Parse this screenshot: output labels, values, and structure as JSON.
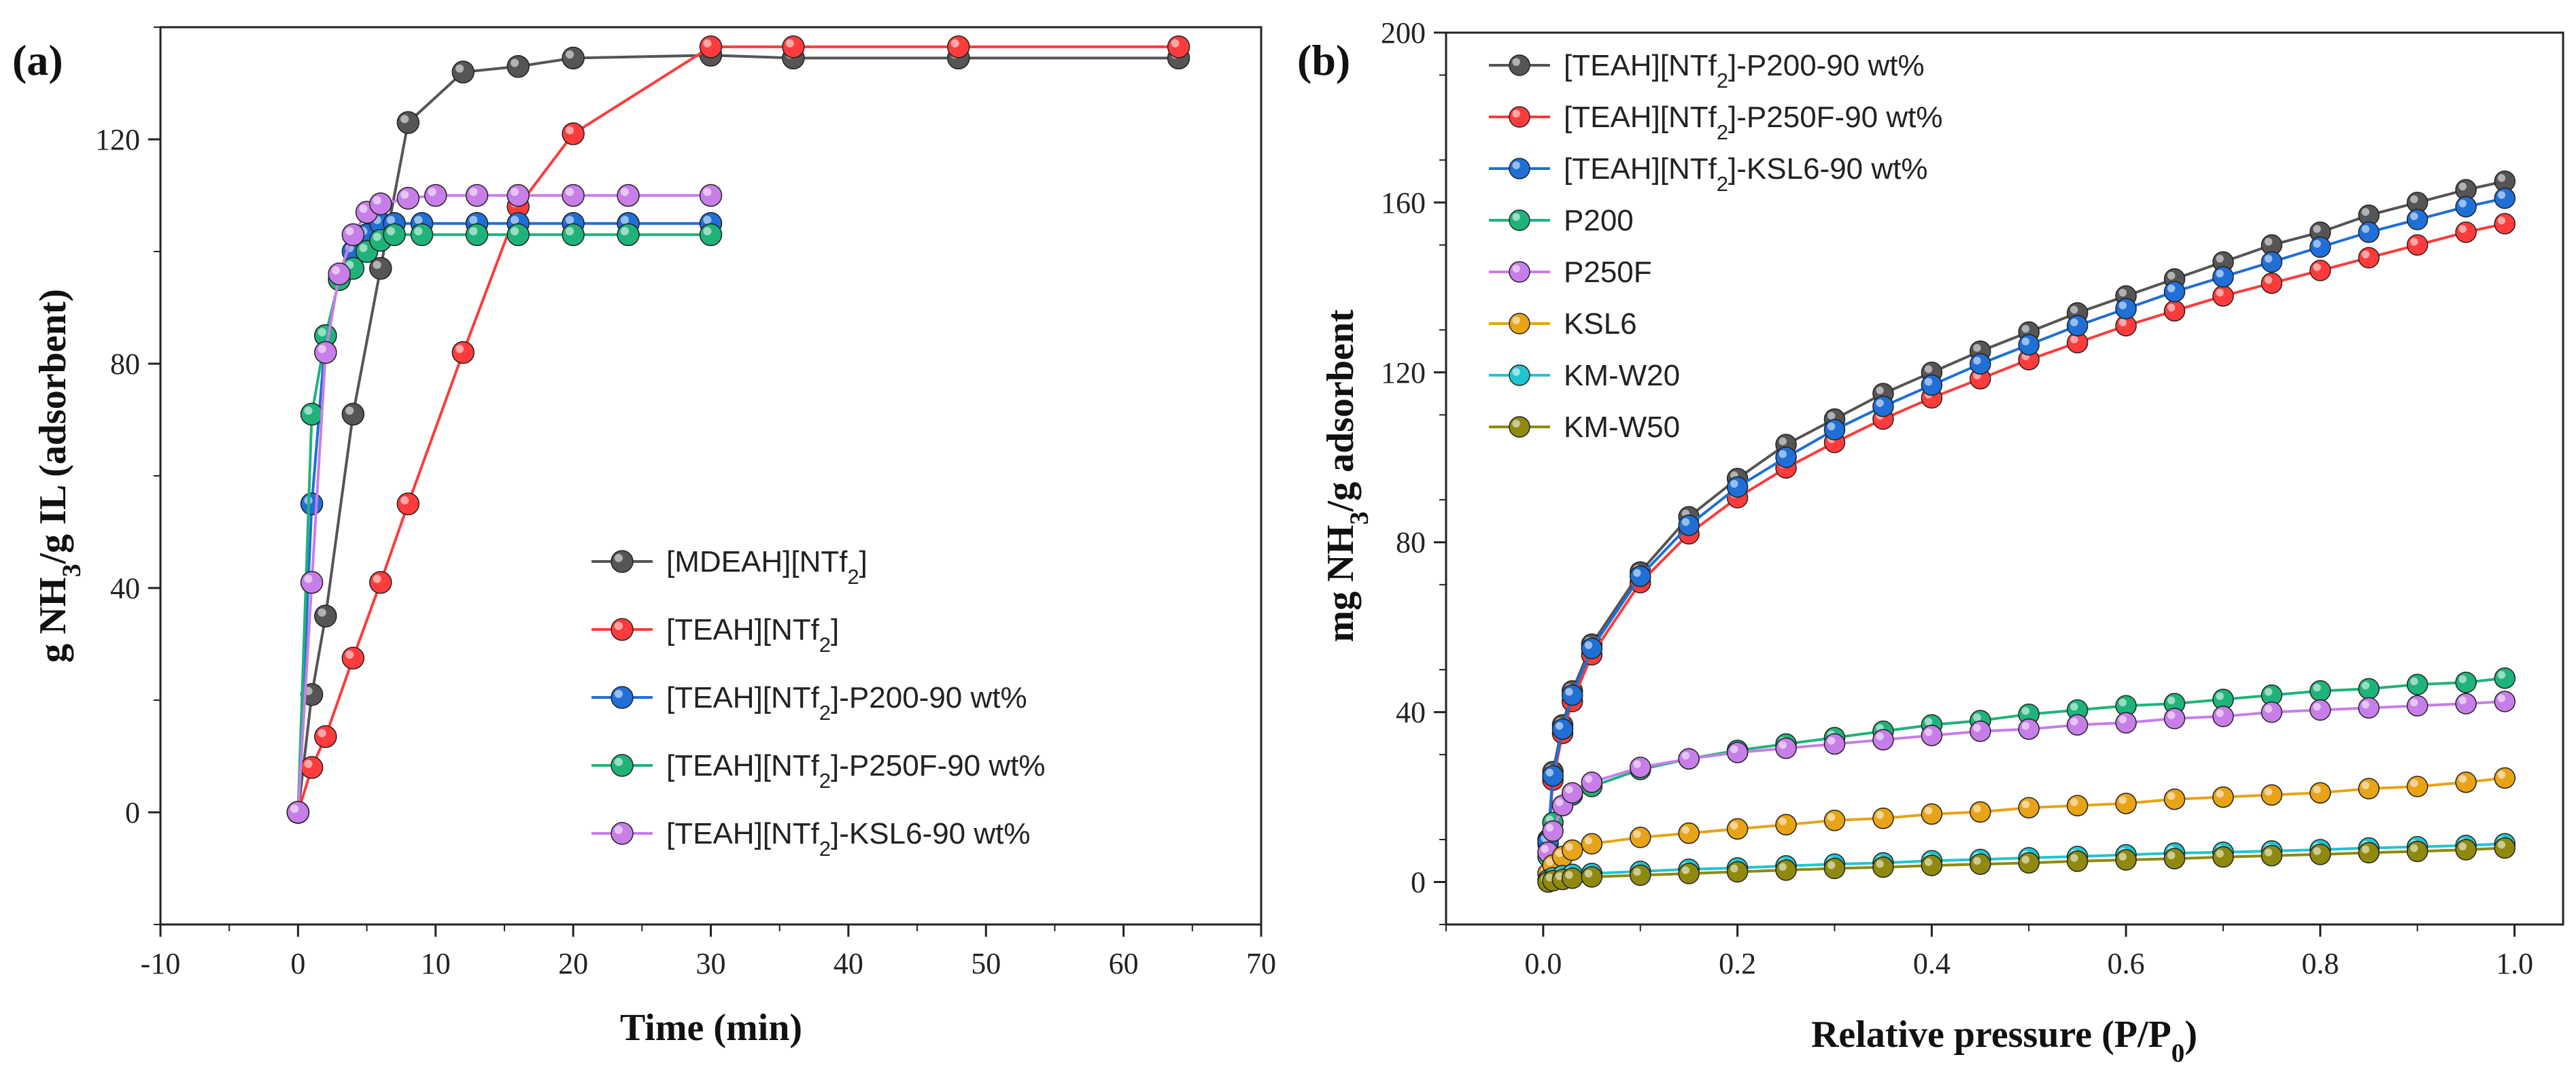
{
  "panel_a": {
    "label": "(a)",
    "chart_data": {
      "type": "line",
      "xlabel": "Time (min)",
      "ylabel_parts": [
        "g NH",
        "3",
        "/g IL  (adsorbent)"
      ],
      "xlim": [
        -10,
        70
      ],
      "ylim": [
        -20,
        140
      ],
      "xticks": [
        "-10",
        "0",
        "10",
        "20",
        "30",
        "40",
        "50",
        "60",
        "70"
      ],
      "yticks": [
        "0",
        "40",
        "80",
        "120"
      ],
      "series": [
        {
          "name": "[MDEAH][NTf2]",
          "legend": [
            "[MDEAH][NTf",
            "2",
            "]"
          ],
          "color": "#555555",
          "x": [
            0,
            1,
            2,
            4,
            6,
            8,
            12,
            16,
            20,
            30,
            36,
            48,
            64
          ],
          "y": [
            0,
            21,
            35,
            71,
            97,
            123,
            132,
            133,
            134.5,
            135,
            134.5,
            134.5,
            134.5
          ]
        },
        {
          "name": "[TEAH][NTf2]",
          "legend": [
            "[TEAH][NTf",
            "2",
            "]"
          ],
          "color": "#ff3b3b",
          "x": [
            0,
            1,
            2,
            4,
            6,
            8,
            12,
            16,
            20,
            30,
            36,
            48,
            64
          ],
          "y": [
            0,
            8,
            13.5,
            27.5,
            41,
            55,
            82,
            108,
            121,
            136.5,
            136.5,
            136.5,
            136.5
          ]
        },
        {
          "name": "[TEAH][NTf2]-P200-90 wt%",
          "legend": [
            "[TEAH][NTf",
            "2",
            "]-P200-90 wt%"
          ],
          "color": "#1f6fd6",
          "x": [
            0,
            1,
            2,
            3,
            4,
            5,
            6,
            7,
            9,
            13,
            16,
            20,
            24,
            30
          ],
          "y": [
            0,
            55,
            85,
            95,
            100,
            103,
            105,
            105,
            105,
            105,
            105,
            105,
            105,
            105
          ]
        },
        {
          "name": "[TEAH][NTf2]-P250F-90 wt%",
          "legend": [
            "[TEAH][NTf",
            "2",
            "]-P250F-90 wt%"
          ],
          "color": "#1fb37a",
          "x": [
            0,
            1,
            2,
            3,
            4,
            5,
            6,
            7,
            9,
            13,
            16,
            20,
            24,
            30
          ],
          "y": [
            0,
            71,
            85,
            95,
            97,
            100,
            102,
            103,
            103,
            103,
            103,
            103,
            103,
            103
          ]
        },
        {
          "name": "[TEAH][NTf2]-KSL6-90 wt%",
          "legend": [
            "[TEAH][NTf",
            "2",
            "]-KSL6-90 wt%"
          ],
          "color": "#c77ee8",
          "x": [
            0,
            1,
            2,
            3,
            4,
            5,
            6,
            8,
            10,
            13,
            16,
            20,
            24,
            30
          ],
          "y": [
            0,
            41,
            82,
            96,
            103,
            107,
            108.5,
            109.5,
            110,
            110,
            110,
            110,
            110,
            110
          ]
        }
      ]
    }
  },
  "panel_b": {
    "label": "(b)",
    "chart_data": {
      "type": "line",
      "xlabel_parts": [
        "Relative pressure (P/P",
        "0",
        ")"
      ],
      "ylabel_parts": [
        "mg NH",
        "3",
        "/g adsorbent"
      ],
      "xlim": [
        -0.1,
        1.05
      ],
      "ylim": [
        -10,
        200
      ],
      "xticks": [
        "0.0",
        "0.2",
        "0.4",
        "0.6",
        "0.8",
        "1.0"
      ],
      "yticks": [
        "0",
        "40",
        "80",
        "120",
        "160",
        "200"
      ],
      "series": [
        {
          "name": "[TEAH][NTf2]-P200-90 wt%",
          "legend": [
            "[TEAH][NTf",
            "2",
            "]-P200-90 wt%"
          ],
          "color": "#555555",
          "x": [
            0.005,
            0.01,
            0.02,
            0.03,
            0.05,
            0.1,
            0.15,
            0.2,
            0.25,
            0.3,
            0.35,
            0.4,
            0.45,
            0.5,
            0.55,
            0.6,
            0.65,
            0.7,
            0.75,
            0.8,
            0.85,
            0.9,
            0.95,
            0.99
          ],
          "y": [
            10,
            26,
            37,
            45,
            56,
            73,
            86,
            95,
            103,
            109,
            115,
            120,
            125,
            129.5,
            134,
            138,
            142,
            146,
            150,
            153,
            157,
            160,
            163,
            165
          ]
        },
        {
          "name": "[TEAH][NTf2]-P250F-90 wt%",
          "legend": [
            "[TEAH][NTf",
            "2",
            "]-P250F-90 wt%"
          ],
          "color": "#ff3b3b",
          "x": [
            0.005,
            0.01,
            0.02,
            0.03,
            0.05,
            0.1,
            0.15,
            0.2,
            0.25,
            0.3,
            0.35,
            0.4,
            0.45,
            0.5,
            0.55,
            0.6,
            0.65,
            0.7,
            0.75,
            0.8,
            0.85,
            0.9,
            0.95,
            0.99
          ],
          "y": [
            9,
            24,
            35,
            42.5,
            53.5,
            70.5,
            82,
            90.5,
            97.5,
            103.5,
            109,
            114,
            118.5,
            123,
            127,
            131,
            134.5,
            138,
            141,
            144,
            147,
            150,
            153,
            155
          ]
        },
        {
          "name": "[TEAH][NTf2]-KSL6-90 wt%",
          "legend": [
            "[TEAH][NTf",
            "2",
            "]-KSL6-90 wt%"
          ],
          "color": "#1f6fd6",
          "x": [
            0.005,
            0.01,
            0.02,
            0.03,
            0.05,
            0.1,
            0.15,
            0.2,
            0.25,
            0.3,
            0.35,
            0.4,
            0.45,
            0.5,
            0.55,
            0.6,
            0.65,
            0.7,
            0.75,
            0.8,
            0.85,
            0.9,
            0.95,
            0.99
          ],
          "y": [
            9.5,
            25,
            36,
            44,
            55,
            72,
            84,
            93,
            100,
            106.5,
            112,
            117,
            122,
            126.5,
            131,
            135,
            139,
            142.5,
            146,
            149.5,
            153,
            156,
            159,
            161
          ]
        },
        {
          "name": "P200",
          "legend": [
            "P200"
          ],
          "color": "#1fb37a",
          "x": [
            0.005,
            0.01,
            0.02,
            0.03,
            0.05,
            0.1,
            0.15,
            0.2,
            0.25,
            0.3,
            0.35,
            0.4,
            0.45,
            0.5,
            0.55,
            0.6,
            0.65,
            0.7,
            0.75,
            0.8,
            0.85,
            0.9,
            0.95,
            0.99
          ],
          "y": [
            6,
            14,
            18,
            20.5,
            22.5,
            26.5,
            29,
            31,
            32.5,
            34,
            35.5,
            37,
            38,
            39.5,
            40.5,
            41.5,
            42,
            43,
            44,
            45,
            45.5,
            46.5,
            47,
            48
          ]
        },
        {
          "name": "P250F",
          "legend": [
            "P250F"
          ],
          "color": "#c77ee8",
          "x": [
            0.005,
            0.01,
            0.02,
            0.03,
            0.05,
            0.1,
            0.15,
            0.2,
            0.25,
            0.3,
            0.35,
            0.4,
            0.45,
            0.5,
            0.55,
            0.6,
            0.65,
            0.7,
            0.75,
            0.8,
            0.85,
            0.9,
            0.95,
            0.99
          ],
          "y": [
            7,
            12,
            18,
            21,
            23.5,
            27,
            29,
            30.5,
            31.5,
            32.5,
            33.5,
            34.5,
            35.5,
            36,
            37,
            37.5,
            38.5,
            39,
            40,
            40.5,
            41,
            41.5,
            42,
            42.5
          ]
        },
        {
          "name": "KSL6",
          "legend": [
            "KSL6"
          ],
          "color": "#e8a317",
          "x": [
            0.005,
            0.01,
            0.02,
            0.03,
            0.05,
            0.1,
            0.15,
            0.2,
            0.25,
            0.3,
            0.35,
            0.4,
            0.45,
            0.5,
            0.55,
            0.6,
            0.65,
            0.7,
            0.75,
            0.8,
            0.85,
            0.9,
            0.95,
            0.99
          ],
          "y": [
            2,
            4,
            6,
            7.5,
            9,
            10.5,
            11.5,
            12.5,
            13.5,
            14.5,
            15,
            16,
            16.5,
            17.5,
            18,
            18.5,
            19.5,
            20,
            20.5,
            21,
            22,
            22.5,
            23.5,
            24.5
          ]
        },
        {
          "name": "KM-W20",
          "legend": [
            "KM-W20"
          ],
          "color": "#21c5cf",
          "x": [
            0.005,
            0.01,
            0.02,
            0.03,
            0.05,
            0.1,
            0.15,
            0.2,
            0.25,
            0.3,
            0.35,
            0.4,
            0.45,
            0.5,
            0.55,
            0.6,
            0.65,
            0.7,
            0.75,
            0.8,
            0.85,
            0.9,
            0.95,
            0.99
          ],
          "y": [
            0.5,
            1,
            1.5,
            1.8,
            2,
            2.5,
            3,
            3.3,
            3.8,
            4.2,
            4.5,
            5,
            5.3,
            5.7,
            6,
            6.4,
            6.8,
            7,
            7.3,
            7.6,
            8,
            8.3,
            8.6,
            9
          ]
        },
        {
          "name": "KM-W50",
          "legend": [
            "KM-W50"
          ],
          "color": "#8f8a0e",
          "x": [
            0.005,
            0.01,
            0.02,
            0.03,
            0.05,
            0.1,
            0.15,
            0.2,
            0.25,
            0.3,
            0.35,
            0.4,
            0.45,
            0.5,
            0.55,
            0.6,
            0.65,
            0.7,
            0.75,
            0.8,
            0.85,
            0.9,
            0.95,
            0.99
          ],
          "y": [
            0,
            0.3,
            0.6,
            0.9,
            1.2,
            1.6,
            2,
            2.4,
            2.8,
            3.2,
            3.5,
            3.9,
            4.2,
            4.5,
            4.9,
            5.2,
            5.5,
            5.9,
            6.2,
            6.5,
            6.9,
            7.2,
            7.6,
            8
          ]
        }
      ]
    }
  }
}
